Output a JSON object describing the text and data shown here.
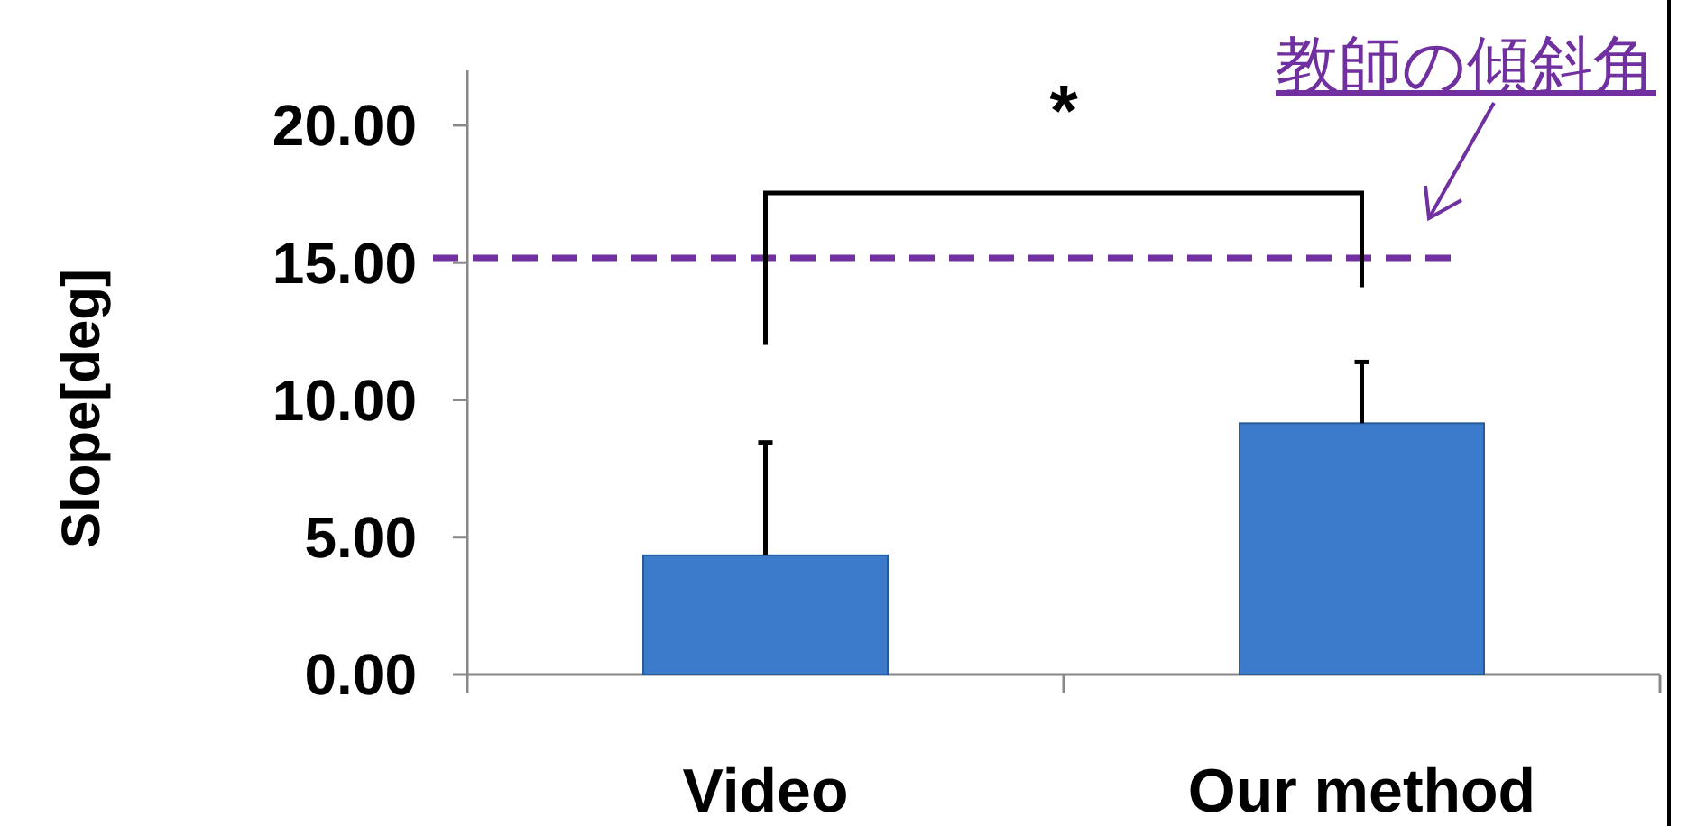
{
  "chart_data": {
    "type": "bar",
    "ylabel": "Slope[deg]",
    "categories": [
      "Video",
      "Our method"
    ],
    "series": [
      {
        "color": "#3c7acb",
        "values": [
          4.34,
          9.15
        ],
        "errors": [
          [
            4.34,
            8.45
          ],
          [
            9.15,
            11.38
          ]
        ]
      }
    ],
    "ylim": [
      0,
      22
    ],
    "yticks": [
      {
        "value": 0,
        "label": "0.00"
      },
      {
        "value": 5,
        "label": "5.00"
      },
      {
        "value": 10,
        "label": "10.00"
      },
      {
        "value": 15,
        "label": "15.00"
      },
      {
        "value": 20,
        "label": "20.00"
      }
    ],
    "grid": false,
    "ref_lines": [
      {
        "axis": "y",
        "value": 15.17,
        "label": "教師の傾斜角",
        "color": "#7030a0",
        "line_style": "dashed"
      }
    ],
    "annotations": [
      "*"
    ]
  }
}
